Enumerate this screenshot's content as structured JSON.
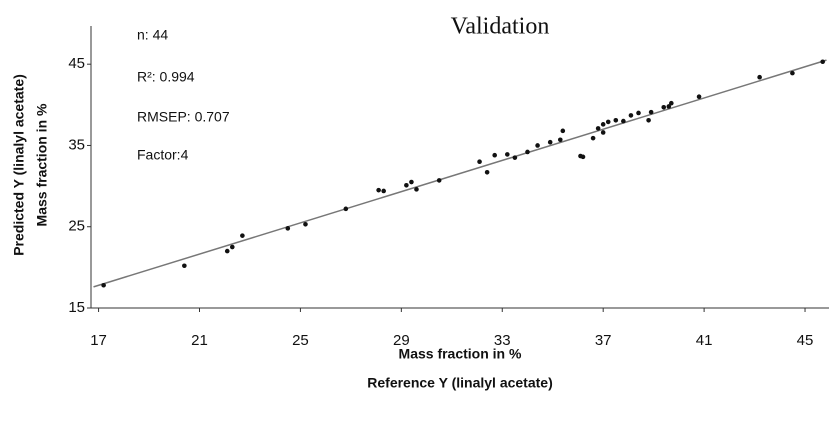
{
  "chart_data": {
    "type": "scatter",
    "title": "Validation",
    "annotations": [
      "n:  44",
      "R²: 0.994",
      "RMSEP:  0.707",
      "Factor:4"
    ],
    "xlabel": [
      "Mass fraction in %",
      "Reference Y (linalyl acetate)"
    ],
    "ylabel": [
      "Predicted Y (linalyl acetate)",
      "Mass fraction in %"
    ],
    "color": "#111111",
    "x": [
      17.2,
      20.4,
      22.1,
      22.3,
      22.7,
      24.5,
      25.2,
      26.8,
      28.1,
      28.3,
      29.2,
      29.4,
      29.6,
      30.5,
      32.1,
      32.4,
      32.7,
      33.2,
      33.5,
      34.0,
      34.4,
      34.9,
      35.3,
      35.4,
      36.1,
      36.2,
      36.6,
      36.8,
      37.0,
      37.0,
      37.2,
      37.5,
      37.8,
      38.1,
      38.4,
      38.8,
      38.9,
      39.4,
      39.6,
      39.7,
      40.8,
      43.2,
      44.5,
      45.7
    ],
    "values": [
      17.8,
      20.2,
      22.0,
      22.5,
      23.9,
      24.8,
      25.3,
      27.2,
      29.5,
      29.4,
      30.1,
      30.5,
      29.6,
      30.7,
      33.0,
      31.7,
      33.8,
      33.9,
      33.5,
      34.2,
      35.0,
      35.4,
      35.7,
      36.8,
      33.7,
      33.6,
      35.9,
      37.1,
      36.6,
      37.6,
      37.9,
      38.1,
      38.0,
      38.7,
      39.0,
      38.1,
      39.1,
      39.7,
      39.8,
      40.2,
      41.0,
      43.4,
      43.9,
      45.3
    ],
    "fit_line": {
      "x": [
        16.8,
        45.85
      ],
      "values": [
        17.6,
        45.5
      ],
      "color": "#777777"
    },
    "xlim": [
      16.7,
      45.95
    ],
    "xticks": [
      17,
      21,
      25,
      29,
      33,
      37,
      41,
      45
    ],
    "ylim": [
      15,
      49.7
    ],
    "yticks": [
      15,
      25,
      35,
      45
    ]
  }
}
